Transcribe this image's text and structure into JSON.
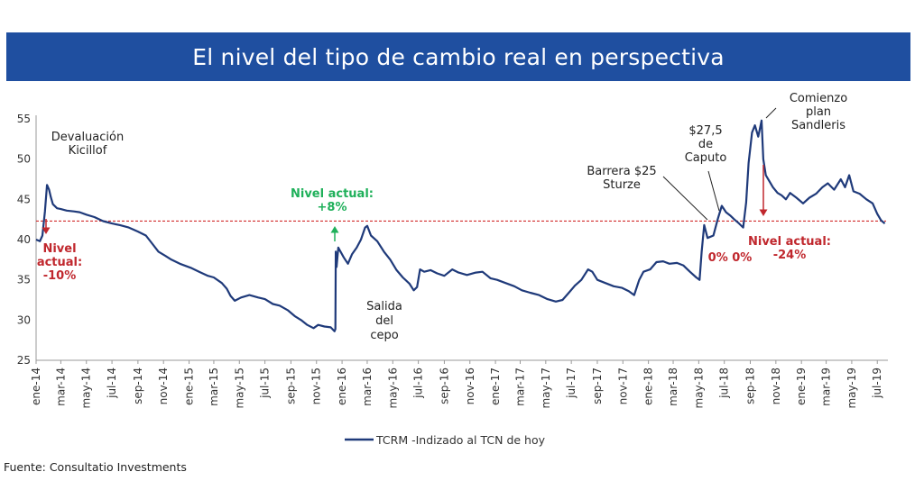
{
  "title": "El nivel del tipo de cambio real en perspectiva",
  "source": "Fuente: Consultatio Investments",
  "colors": {
    "banner": "#1f4fa0",
    "series": "#1f3a7a",
    "reference": "#d22b2b",
    "red_text": "#c0272d",
    "green_text": "#1fb05a"
  },
  "chart_data": {
    "type": "line",
    "title": "El nivel del tipo de cambio real en perspectiva",
    "ylim": [
      25,
      55
    ],
    "yticks": [
      25,
      30,
      35,
      40,
      45,
      50,
      55
    ],
    "xlim": [
      "2014-01-01",
      "2019-07-22"
    ],
    "xticks": [
      {
        "label": "ene-14",
        "date": "2014-01-01"
      },
      {
        "label": "mar-14",
        "date": "2014-03-01"
      },
      {
        "label": "may-14",
        "date": "2014-05-01"
      },
      {
        "label": "jul-14",
        "date": "2014-07-01"
      },
      {
        "label": "sep-14",
        "date": "2014-09-01"
      },
      {
        "label": "nov-14",
        "date": "2014-11-01"
      },
      {
        "label": "ene-15",
        "date": "2015-01-01"
      },
      {
        "label": "mar-15",
        "date": "2015-03-01"
      },
      {
        "label": "may-15",
        "date": "2015-05-01"
      },
      {
        "label": "jul-15",
        "date": "2015-07-01"
      },
      {
        "label": "sep-15",
        "date": "2015-09-01"
      },
      {
        "label": "nov-15",
        "date": "2015-11-01"
      },
      {
        "label": "ene-16",
        "date": "2016-01-01"
      },
      {
        "label": "mar-16",
        "date": "2016-03-01"
      },
      {
        "label": "may-16",
        "date": "2016-05-01"
      },
      {
        "label": "jul-16",
        "date": "2016-07-01"
      },
      {
        "label": "sep-16",
        "date": "2016-09-01"
      },
      {
        "label": "nov-16",
        "date": "2016-11-01"
      },
      {
        "label": "ene-17",
        "date": "2017-01-01"
      },
      {
        "label": "mar-17",
        "date": "2017-03-01"
      },
      {
        "label": "may-17",
        "date": "2017-05-01"
      },
      {
        "label": "jul-17",
        "date": "2017-07-01"
      },
      {
        "label": "sep-17",
        "date": "2017-09-01"
      },
      {
        "label": "nov-17",
        "date": "2017-11-01"
      },
      {
        "label": "ene-18",
        "date": "2018-01-01"
      },
      {
        "label": "mar-18",
        "date": "2018-03-01"
      },
      {
        "label": "may-18",
        "date": "2018-05-01"
      },
      {
        "label": "jul-18",
        "date": "2018-07-01"
      },
      {
        "label": "sep-18",
        "date": "2018-09-01"
      },
      {
        "label": "nov-18",
        "date": "2018-11-01"
      },
      {
        "label": "ene-19",
        "date": "2019-01-01"
      },
      {
        "label": "mar-19",
        "date": "2019-03-01"
      },
      {
        "label": "may-19",
        "date": "2019-05-01"
      },
      {
        "label": "jul-19",
        "date": "2019-07-01"
      }
    ],
    "reference_line": 42.3,
    "series": [
      {
        "name": "TCRM -Indizado al TCN de hoy",
        "points": [
          [
            "2014-01-01",
            40.0
          ],
          [
            "2014-01-10",
            39.8
          ],
          [
            "2014-01-16",
            40.5
          ],
          [
            "2014-01-22",
            43.5
          ],
          [
            "2014-01-27",
            46.8
          ],
          [
            "2014-02-01",
            46.2
          ],
          [
            "2014-02-05",
            45.3
          ],
          [
            "2014-02-10",
            44.4
          ],
          [
            "2014-02-20",
            43.9
          ],
          [
            "2014-03-01",
            43.8
          ],
          [
            "2014-03-15",
            43.6
          ],
          [
            "2014-04-01",
            43.5
          ],
          [
            "2014-04-15",
            43.4
          ],
          [
            "2014-05-01",
            43.1
          ],
          [
            "2014-05-20",
            42.8
          ],
          [
            "2014-06-10",
            42.3
          ],
          [
            "2014-07-01",
            42.0
          ],
          [
            "2014-07-20",
            41.8
          ],
          [
            "2014-08-10",
            41.5
          ],
          [
            "2014-09-01",
            41.0
          ],
          [
            "2014-09-20",
            40.5
          ],
          [
            "2014-10-05",
            39.5
          ],
          [
            "2014-10-20",
            38.5
          ],
          [
            "2014-11-05",
            38.0
          ],
          [
            "2014-11-20",
            37.5
          ],
          [
            "2014-12-10",
            37.0
          ],
          [
            "2015-01-05",
            36.5
          ],
          [
            "2015-01-25",
            36.0
          ],
          [
            "2015-02-15",
            35.5
          ],
          [
            "2015-03-01",
            35.3
          ],
          [
            "2015-03-20",
            34.6
          ],
          [
            "2015-04-01",
            33.9
          ],
          [
            "2015-04-10",
            33.0
          ],
          [
            "2015-04-20",
            32.4
          ],
          [
            "2015-05-05",
            32.8
          ],
          [
            "2015-05-25",
            33.1
          ],
          [
            "2015-06-15",
            32.8
          ],
          [
            "2015-07-01",
            32.6
          ],
          [
            "2015-07-20",
            32.0
          ],
          [
            "2015-08-05",
            31.8
          ],
          [
            "2015-08-25",
            31.2
          ],
          [
            "2015-09-10",
            30.5
          ],
          [
            "2015-09-25",
            30.0
          ],
          [
            "2015-10-10",
            29.4
          ],
          [
            "2015-10-25",
            29.0
          ],
          [
            "2015-11-05",
            29.4
          ],
          [
            "2015-11-20",
            29.2
          ],
          [
            "2015-12-05",
            29.1
          ],
          [
            "2015-12-14",
            28.6
          ],
          [
            "2015-12-16",
            28.9
          ],
          [
            "2015-12-17",
            38.5
          ],
          [
            "2015-12-19",
            36.6
          ],
          [
            "2015-12-23",
            39.0
          ],
          [
            "2016-01-05",
            37.8
          ],
          [
            "2016-01-15",
            37.0
          ],
          [
            "2016-01-25",
            38.2
          ],
          [
            "2016-02-05",
            39.0
          ],
          [
            "2016-02-15",
            40.0
          ],
          [
            "2016-02-25",
            41.5
          ],
          [
            "2016-03-01",
            41.7
          ],
          [
            "2016-03-10",
            40.5
          ],
          [
            "2016-03-25",
            39.8
          ],
          [
            "2016-04-10",
            38.5
          ],
          [
            "2016-04-25",
            37.5
          ],
          [
            "2016-05-10",
            36.2
          ],
          [
            "2016-05-25",
            35.3
          ],
          [
            "2016-06-10",
            34.5
          ],
          [
            "2016-06-20",
            33.7
          ],
          [
            "2016-06-28",
            34.1
          ],
          [
            "2016-07-05",
            36.3
          ],
          [
            "2016-07-15",
            36.0
          ],
          [
            "2016-07-30",
            36.2
          ],
          [
            "2016-08-15",
            35.8
          ],
          [
            "2016-09-01",
            35.5
          ],
          [
            "2016-09-20",
            36.3
          ],
          [
            "2016-10-05",
            35.9
          ],
          [
            "2016-10-25",
            35.6
          ],
          [
            "2016-11-15",
            35.9
          ],
          [
            "2016-12-01",
            36.0
          ],
          [
            "2016-12-20",
            35.2
          ],
          [
            "2017-01-05",
            35.0
          ],
          [
            "2017-01-25",
            34.6
          ],
          [
            "2017-02-15",
            34.2
          ],
          [
            "2017-03-05",
            33.7
          ],
          [
            "2017-03-25",
            33.4
          ],
          [
            "2017-04-15",
            33.1
          ],
          [
            "2017-05-05",
            32.6
          ],
          [
            "2017-05-25",
            32.3
          ],
          [
            "2017-06-10",
            32.5
          ],
          [
            "2017-06-25",
            33.4
          ],
          [
            "2017-07-10",
            34.3
          ],
          [
            "2017-07-25",
            35.0
          ],
          [
            "2017-08-10",
            36.3
          ],
          [
            "2017-08-20",
            36.0
          ],
          [
            "2017-09-01",
            35.0
          ],
          [
            "2017-09-20",
            34.6
          ],
          [
            "2017-10-10",
            34.2
          ],
          [
            "2017-10-30",
            34.0
          ],
          [
            "2017-11-15",
            33.6
          ],
          [
            "2017-11-28",
            33.1
          ],
          [
            "2017-12-10",
            35.0
          ],
          [
            "2017-12-20",
            36.0
          ],
          [
            "2018-01-05",
            36.3
          ],
          [
            "2018-01-20",
            37.2
          ],
          [
            "2018-02-05",
            37.3
          ],
          [
            "2018-02-20",
            37.0
          ],
          [
            "2018-03-10",
            37.1
          ],
          [
            "2018-03-25",
            36.8
          ],
          [
            "2018-04-10",
            36.0
          ],
          [
            "2018-04-25",
            35.3
          ],
          [
            "2018-05-03",
            35.0
          ],
          [
            "2018-05-08",
            38.5
          ],
          [
            "2018-05-14",
            41.8
          ],
          [
            "2018-05-22",
            40.2
          ],
          [
            "2018-06-05",
            40.5
          ],
          [
            "2018-06-15",
            42.5
          ],
          [
            "2018-06-25",
            44.2
          ],
          [
            "2018-07-05",
            43.4
          ],
          [
            "2018-07-15",
            43.0
          ],
          [
            "2018-07-25",
            42.5
          ],
          [
            "2018-08-05",
            42.0
          ],
          [
            "2018-08-15",
            41.5
          ],
          [
            "2018-08-22",
            44.6
          ],
          [
            "2018-08-28",
            49.5
          ],
          [
            "2018-09-05",
            53.3
          ],
          [
            "2018-09-12",
            54.2
          ],
          [
            "2018-09-20",
            52.8
          ],
          [
            "2018-09-28",
            54.8
          ],
          [
            "2018-10-02",
            50.0
          ],
          [
            "2018-10-08",
            48.0
          ],
          [
            "2018-10-15",
            47.4
          ],
          [
            "2018-10-25",
            46.5
          ],
          [
            "2018-11-05",
            45.8
          ],
          [
            "2018-11-15",
            45.5
          ],
          [
            "2018-11-25",
            45.0
          ],
          [
            "2018-12-05",
            45.8
          ],
          [
            "2018-12-20",
            45.2
          ],
          [
            "2019-01-05",
            44.5
          ],
          [
            "2019-01-20",
            45.2
          ],
          [
            "2019-02-05",
            45.7
          ],
          [
            "2019-02-20",
            46.5
          ],
          [
            "2019-03-05",
            47.0
          ],
          [
            "2019-03-20",
            46.2
          ],
          [
            "2019-04-05",
            47.5
          ],
          [
            "2019-04-15",
            46.5
          ],
          [
            "2019-04-25",
            48.0
          ],
          [
            "2019-05-05",
            46.0
          ],
          [
            "2019-05-20",
            45.7
          ],
          [
            "2019-06-05",
            45.0
          ],
          [
            "2019-06-20",
            44.5
          ],
          [
            "2019-07-01",
            43.2
          ],
          [
            "2019-07-10",
            42.4
          ],
          [
            "2019-07-19",
            42.0
          ]
        ]
      }
    ],
    "annotations": [
      {
        "id": "kicillof",
        "lines": [
          "Devaluación",
          "Kicillof"
        ]
      },
      {
        "id": "nivel-10",
        "lines": [
          "Nivel",
          "actual:",
          "-10%"
        ]
      },
      {
        "id": "nivel-8",
        "lines": [
          "Nivel actual:",
          "+8%"
        ]
      },
      {
        "id": "cepo",
        "lines": [
          "Salida",
          "del",
          "cepo"
        ]
      },
      {
        "id": "sturze",
        "lines": [
          "Barrera $25",
          "Sturze"
        ]
      },
      {
        "id": "caputo",
        "lines": [
          "$27,5",
          "de",
          "Caputo"
        ]
      },
      {
        "id": "sandleris",
        "lines": [
          "Comienzo",
          "plan",
          "Sandleris"
        ]
      },
      {
        "id": "zeros",
        "lines": [
          "0% 0%"
        ]
      },
      {
        "id": "nivel-24",
        "lines": [
          "Nivel actual:",
          "-24%"
        ]
      }
    ],
    "legend_position": "bottom",
    "grid": false
  }
}
